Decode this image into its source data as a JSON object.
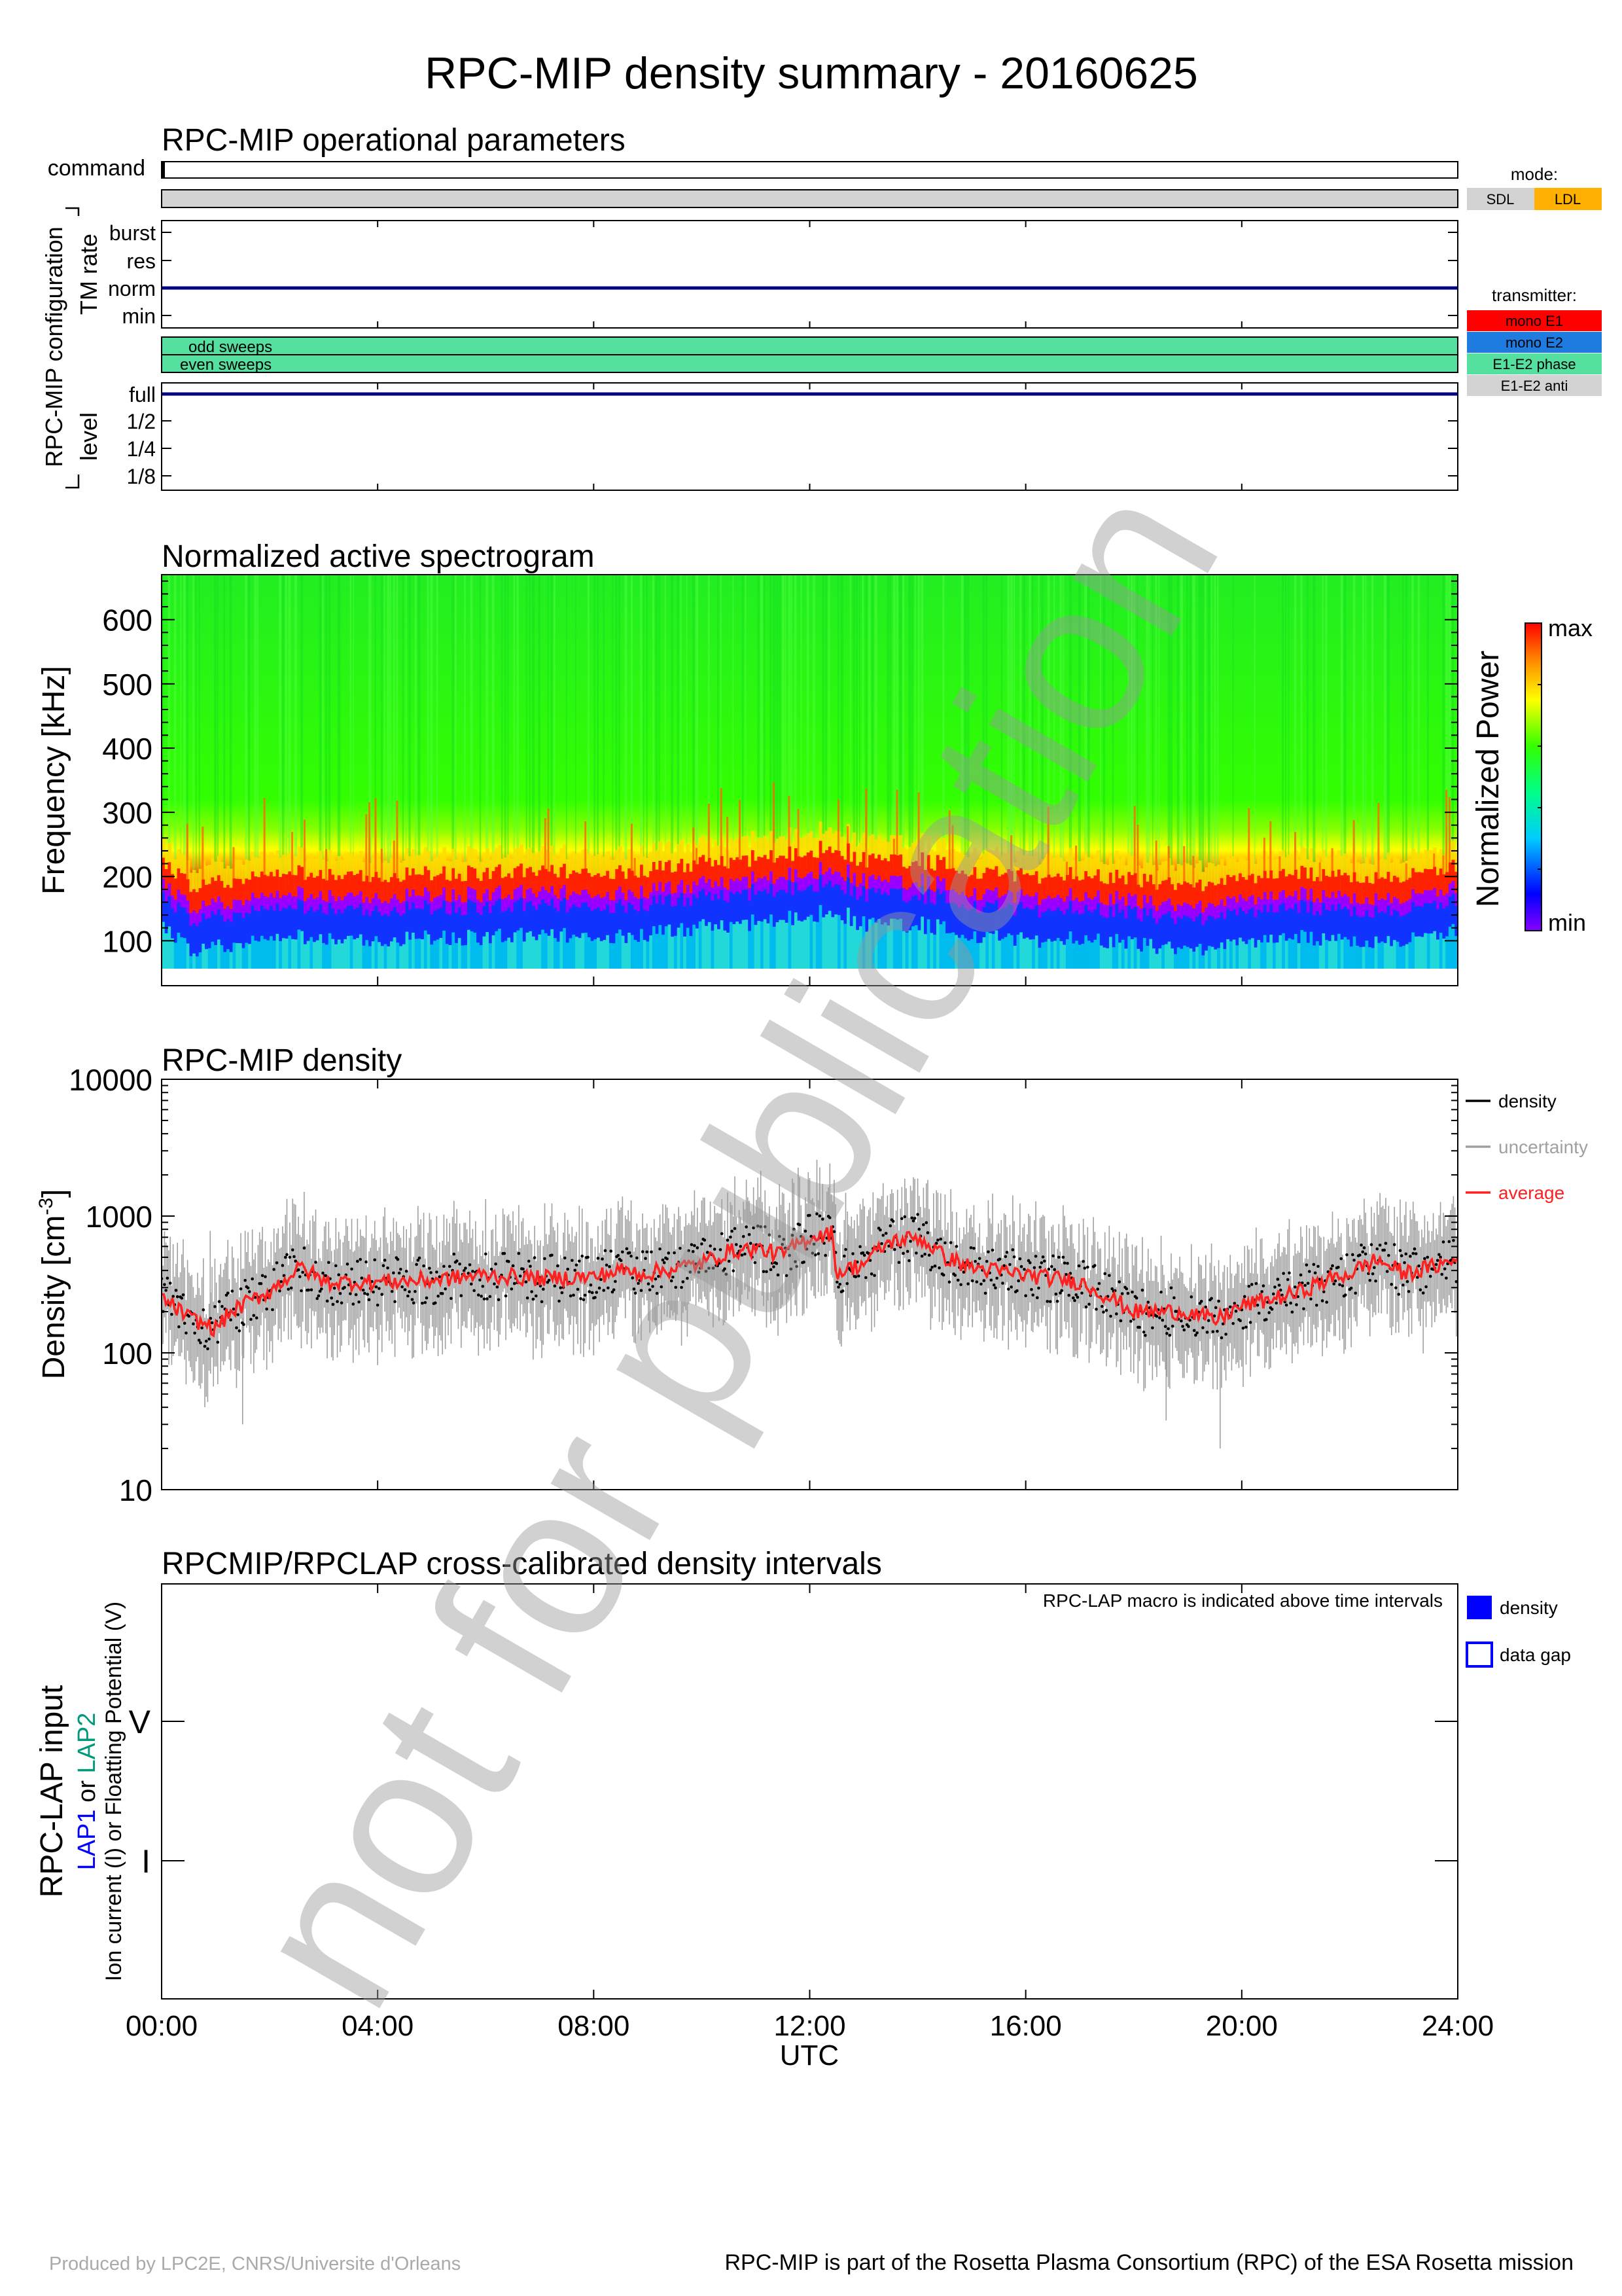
{
  "title": "RPC-MIP density summary - 20160625",
  "footer": {
    "left": "Produced by LPC2E, CNRS/Universite d'Orleans",
    "right": "RPC-MIP is part of the Rosetta Plasma Consortium (RPC) of the ESA Rosetta mission"
  },
  "watermark": "not for publication",
  "colors": {
    "sdl": "#d3d3d3",
    "ldl": "#ffb000",
    "mono_e1": "#ff0000",
    "mono_e2": "#1e7be0",
    "e1e2_phase": "#55e0a0",
    "e1e2_anti": "#d3d3d3",
    "navy": "#000080",
    "density": "#000000",
    "uncertainty": "#a0a0a0",
    "average": "#ff2020",
    "gap_blue": "#0000ff"
  },
  "operational": {
    "title": "RPC-MIP operational parameters",
    "command_label": "command",
    "config_label": "RPC-MIP configuration",
    "tm_rate_label": "TM rate",
    "tm_rate_levels": [
      "burst",
      "res",
      "norm",
      "min"
    ],
    "tm_rate_value": "norm",
    "odd_sweeps_label": "odd sweeps",
    "even_sweeps_label": "even sweeps",
    "level_label": "level",
    "level_ticks": [
      "full",
      "1/2",
      "1/4",
      "1/8"
    ],
    "level_value": "full",
    "mode_title": "mode:",
    "mode_legend": [
      "SDL",
      "LDL"
    ],
    "transmitter_title": "transmitter:",
    "transmitter_legend": [
      "mono E1",
      "mono E2",
      "E1-E2 phase",
      "E1-E2 anti"
    ]
  },
  "chart_data": [
    {
      "type": "heatmap",
      "title": "Normalized active spectrogram",
      "ylabel": "Frequency [kHz]",
      "xlim": [
        0,
        24
      ],
      "ylim": [
        30,
        670
      ],
      "y_ticks": [
        "100",
        "200",
        "300",
        "400",
        "500",
        "600"
      ],
      "colorbar_label": "Normalized Power",
      "colorbar_ticks": [
        "max",
        "min"
      ],
      "plasma_line_time_h": [
        0,
        0.5,
        1,
        2,
        3,
        4,
        5,
        6,
        7,
        8,
        9,
        10,
        11,
        12,
        12.4,
        13,
        14,
        15,
        16,
        17,
        18,
        19,
        20,
        21,
        22,
        23,
        24
      ],
      "plasma_line_freq_khz": [
        200,
        160,
        165,
        180,
        180,
        175,
        180,
        180,
        185,
        180,
        185,
        195,
        205,
        215,
        225,
        200,
        200,
        185,
        175,
        180,
        170,
        160,
        170,
        180,
        175,
        175,
        190
      ]
    },
    {
      "type": "line",
      "title": "RPC-MIP density",
      "ylabel": "Density [cm",
      "ylabel_sup": "-3",
      "ylabel_close": "]",
      "yscale": "log",
      "ylim": [
        10,
        10000
      ],
      "y_ticks": [
        "10",
        "100",
        "1000",
        "10000"
      ],
      "xlim": [
        0,
        24
      ],
      "legend": [
        "density",
        "uncertainty",
        "average"
      ],
      "legend_position": "right",
      "x": [
        0,
        0.5,
        1,
        1.3,
        2,
        2.6,
        3,
        4,
        5,
        6,
        7,
        8,
        8.5,
        9,
        10,
        10.5,
        11,
        11.5,
        12,
        12.4,
        12.5,
        13,
        13.5,
        14,
        14.5,
        15,
        16,
        17,
        17.5,
        18,
        19,
        19.5,
        20,
        21,
        21.5,
        22,
        22.5,
        23,
        23.5,
        24
      ],
      "values": [
        250,
        180,
        150,
        200,
        280,
        420,
        330,
        330,
        340,
        370,
        350,
        360,
        400,
        380,
        450,
        550,
        580,
        520,
        700,
        750,
        380,
        450,
        650,
        700,
        500,
        420,
        370,
        330,
        260,
        200,
        200,
        170,
        220,
        270,
        330,
        380,
        480,
        380,
        420,
        480
      ]
    }
  ],
  "cross": {
    "title": "RPCMIP/RPCLAP cross-calibrated density intervals",
    "note": "RPC-LAP macro is indicated above time intervals",
    "ylabel_main": "RPC-LAP input",
    "lap1": "LAP1",
    "or1": " or ",
    "lap2": "LAP2",
    "ylabel_sub": "Ion current (I) or Floatting Potential (V)",
    "y_ticks": [
      "V",
      "I"
    ],
    "legend": [
      "density",
      "data gap"
    ]
  },
  "x_axis": {
    "ticks": [
      "00:00",
      "04:00",
      "08:00",
      "12:00",
      "16:00",
      "20:00",
      "24:00"
    ],
    "label": "UTC"
  }
}
